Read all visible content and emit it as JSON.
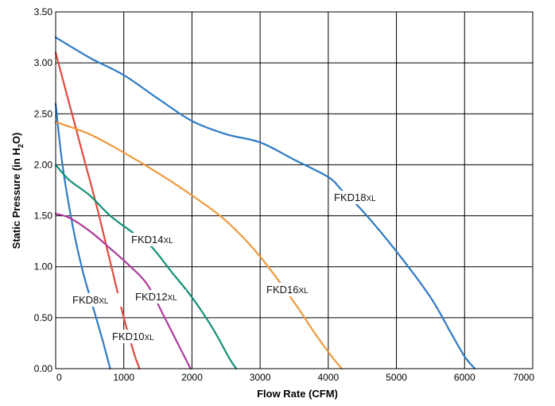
{
  "chart_data": {
    "type": "line",
    "xlabel": "Flow Rate (CFM)",
    "ylabel_parts": [
      "Static Pressure (in H",
      "2",
      "O)"
    ],
    "xlim": [
      0,
      7000
    ],
    "ylim": [
      0,
      3.5
    ],
    "xticks": [
      0,
      1000,
      2000,
      3000,
      4000,
      5000,
      6000,
      7000
    ],
    "xtick_labels": [
      "0",
      "1000",
      "2000",
      "3000",
      "4000",
      "5000",
      "6000",
      "7000"
    ],
    "yticks": [
      0,
      0.5,
      1.0,
      1.5,
      2.0,
      2.5,
      3.0,
      3.5
    ],
    "ytick_labels": [
      "0.00",
      "0.50",
      "1.00",
      "1.50",
      "2.00",
      "2.50",
      "3.00",
      "3.50"
    ],
    "grid": true,
    "series": [
      {
        "name": "FKD8XL",
        "label_main": "FKD8",
        "label_sub": "XL",
        "color": "#2e7bc4",
        "x": [
          0,
          100,
          250,
          400,
          550,
          680,
          780,
          800
        ],
        "y": [
          2.6,
          2.0,
          1.4,
          0.95,
          0.6,
          0.3,
          0.05,
          0.0
        ]
      },
      {
        "name": "FKD10XL",
        "label_main": "FKD10",
        "label_sub": "XL",
        "color": "#e04a3c",
        "x": [
          0,
          200,
          400,
          600,
          800,
          1000,
          1150,
          1230
        ],
        "y": [
          3.1,
          2.6,
          2.1,
          1.6,
          1.05,
          0.5,
          0.15,
          0.0
        ]
      },
      {
        "name": "FKD12XL",
        "label_main": "FKD12",
        "label_sub": "XL",
        "color": "#b03a9e",
        "x": [
          0,
          200,
          500,
          800,
          1100,
          1350,
          1600,
          1850,
          1980
        ],
        "y": [
          1.52,
          1.48,
          1.35,
          1.18,
          1.0,
          0.82,
          0.5,
          0.17,
          0.0
        ]
      },
      {
        "name": "FKD14XL",
        "label_main": "FKD14",
        "label_sub": "XL",
        "color": "#129178",
        "x": [
          0,
          200,
          500,
          800,
          1100,
          1400,
          1700,
          2000,
          2300,
          2550,
          2650
        ],
        "y": [
          2.0,
          1.85,
          1.7,
          1.5,
          1.35,
          1.2,
          0.95,
          0.7,
          0.4,
          0.1,
          0.0
        ]
      },
      {
        "name": "FKD16XL",
        "label_main": "FKD16",
        "label_sub": "XL",
        "color": "#ee9a3c",
        "x": [
          0,
          500,
          1000,
          1500,
          2000,
          2500,
          3000,
          3500,
          3800,
          4050,
          4200
        ],
        "y": [
          2.42,
          2.3,
          2.12,
          1.92,
          1.7,
          1.45,
          1.1,
          0.65,
          0.35,
          0.12,
          0.0
        ]
      },
      {
        "name": "FKD18XL",
        "label_main": "FKD18",
        "label_sub": "XL",
        "color": "#2e7bc4",
        "x": [
          0,
          500,
          1000,
          1500,
          2000,
          2500,
          3000,
          3500,
          4000,
          4200,
          4500,
          5000,
          5500,
          5800,
          6000,
          6150
        ],
        "y": [
          3.25,
          3.05,
          2.88,
          2.65,
          2.43,
          2.3,
          2.22,
          2.05,
          1.88,
          1.75,
          1.55,
          1.15,
          0.7,
          0.35,
          0.12,
          0.0
        ]
      }
    ]
  }
}
